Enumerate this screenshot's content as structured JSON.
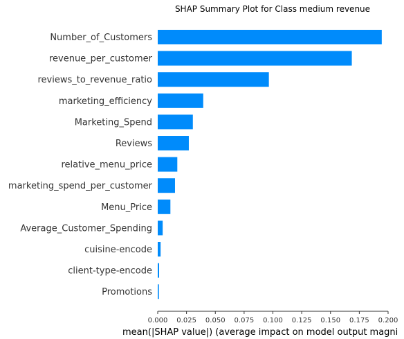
{
  "chart_data": {
    "type": "bar",
    "orientation": "horizontal",
    "title": "SHAP Summary Plot for Class medium revenue",
    "xlabel": "mean(|SHAP value|) (average impact on model output magni",
    "ylabel": "",
    "xlim": [
      0,
      0.2
    ],
    "xticks": [
      "0.000",
      "0.025",
      "0.050",
      "0.075",
      "0.100",
      "0.125",
      "0.150",
      "0.175",
      "0.200"
    ],
    "bar_color": "#008bfb",
    "grid": false,
    "categories": [
      "Number_of_Customers",
      "revenue_per_customer",
      "reviews_to_revenue_ratio",
      "marketing_efficiency",
      "Marketing_Spend",
      "Reviews",
      "relative_menu_price",
      "marketing_spend_per_customer",
      "Menu_Price",
      "Average_Customer_Spending",
      "cuisine-encode",
      "client-type-encode",
      "Promotions"
    ],
    "values": [
      0.1945,
      0.1685,
      0.0965,
      0.0395,
      0.0305,
      0.027,
      0.017,
      0.015,
      0.011,
      0.0043,
      0.0025,
      0.0012,
      0.001
    ]
  }
}
